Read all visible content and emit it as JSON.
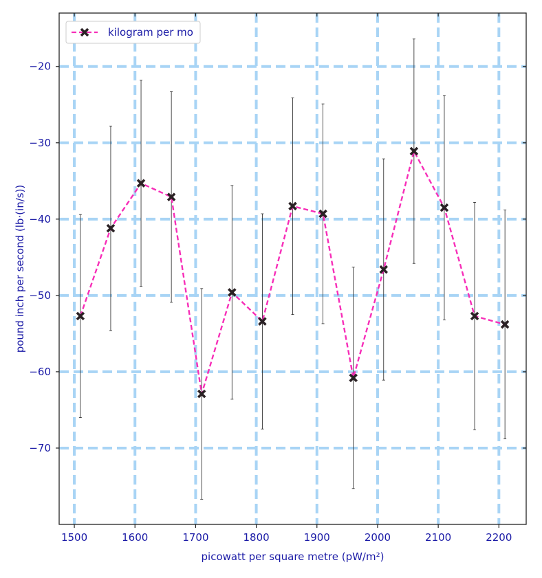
{
  "chart_data": {
    "type": "line",
    "title": "",
    "xlabel": "picowatt per square metre (pW/m²)",
    "ylabel": "pound inch per second (lb·(in/s))",
    "xlim": [
      1475,
      2245
    ],
    "ylim": [
      -80,
      -13
    ],
    "x_ticks": [
      1500,
      1600,
      1700,
      1800,
      1900,
      2000,
      2100,
      2200
    ],
    "y_ticks": [
      -70,
      -60,
      -50,
      -40,
      -30,
      -20
    ],
    "grid": true,
    "legend_position": "top-left",
    "series": [
      {
        "name": "kilogram per mo",
        "color": "#f72eb8",
        "marker_color": "#2a2124",
        "line_style": "dashed",
        "marker": "x",
        "x": [
          1510,
          1560,
          1610,
          1660,
          1710,
          1760,
          1810,
          1860,
          1910,
          1960,
          2010,
          2060,
          2110,
          2160,
          2210
        ],
        "y": [
          -52.7,
          -41.2,
          -35.3,
          -37.1,
          -62.9,
          -49.6,
          -53.4,
          -38.3,
          -39.3,
          -60.8,
          -46.6,
          -31.1,
          -38.5,
          -52.7,
          -53.8
        ],
        "error": [
          13.3,
          13.4,
          13.5,
          13.8,
          13.8,
          14.0,
          14.1,
          14.2,
          14.4,
          14.5,
          14.5,
          14.7,
          14.7,
          14.9,
          15.0
        ]
      }
    ],
    "colors": {
      "grid": "#a8d4f5",
      "axis_text": "#1a1aa6",
      "frame": "#222222",
      "errorbar": "#222222"
    }
  }
}
